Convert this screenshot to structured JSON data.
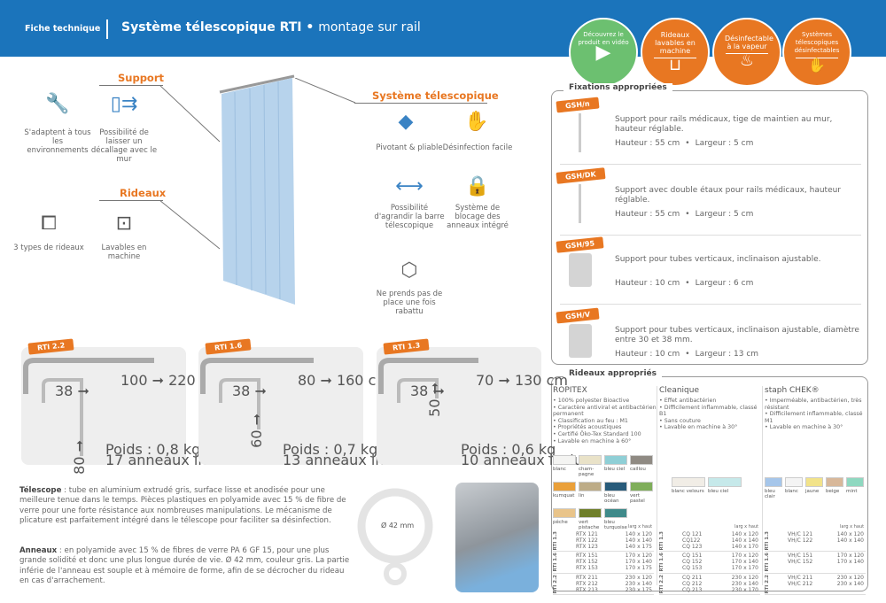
{
  "header": {
    "doc_type": "Fiche technique",
    "title": "Système télescopique RTI",
    "title_sep": "•",
    "subtitle": "montage sur rail",
    "color": "#1b74bb"
  },
  "badges": [
    {
      "label": "Découvrez le produit en vidéo",
      "icon": "video-camera-icon",
      "color": "#6cc070"
    },
    {
      "label": "Rideaux lavables en machine",
      "icon": "wash-basin-icon",
      "color": "#e87722"
    },
    {
      "label": "Désinfectable à la vapeur",
      "icon": "steam-icon",
      "color": "#e87722"
    },
    {
      "label": "Systèmes télescopiques désinfectables",
      "icon": "wipe-hand-icon",
      "color": "#e87722"
    }
  ],
  "support": {
    "title": "Support",
    "items": [
      {
        "label": "S'adaptent à tous les environnements",
        "icon": "tools-icon"
      },
      {
        "label": "Possibilité de laisser un décallage avec le mur",
        "icon": "wall-offset-icon"
      }
    ]
  },
  "rideaux": {
    "title": "Rideaux",
    "items": [
      {
        "label": "3 types de rideaux",
        "icon": "curtain-icon"
      },
      {
        "label": "Lavables en machine",
        "icon": "washing-machine-icon"
      }
    ]
  },
  "telescopique": {
    "title": "Système télescopique",
    "items": [
      {
        "label": "Pivotant & pliable",
        "icon": "rotate-icon"
      },
      {
        "label": "Désinfection facile",
        "icon": "wipe-icon"
      },
      {
        "label": "Possibilité d'agrandir la barre télescopique",
        "icon": "extend-icon"
      },
      {
        "label": "Système de blocage des anneaux intégré",
        "icon": "lock-icon"
      },
      {
        "label": "Ne prends pas de place une fois rabattu",
        "icon": "cube-icon"
      }
    ]
  },
  "models": [
    {
      "name": "RTI 2.2",
      "range": "100 ➞ 220 cm",
      "offset": "38 ➞",
      "drop": "80 ➞",
      "weight": "Poids : 0,8 kg",
      "rings": "17 anneaux inclus"
    },
    {
      "name": "RTI 1.6",
      "range": "80 ➞ 160 cm",
      "offset": "38 ➞",
      "drop": "60 ➞",
      "weight": "Poids : 0,7 kg",
      "rings": "13 anneaux inclus"
    },
    {
      "name": "RTI 1.3",
      "range": "70 ➞ 130 cm",
      "offset": "38 ➞",
      "drop": "50 ➞",
      "weight": "Poids : 0,6 kg",
      "rings": "10 anneaux inclus"
    }
  ],
  "text": {
    "telescope_label": "Télescope",
    "telescope": " : tube en aluminium extrudé gris, surface lisse et anodisée pour une meilleure tenue dans le temps. Pièces plastiques en polyamide avec 15 % de fibre de verre pour une forte résistance aux nombreuses manipulations. Le mécanisme de plicature est parfaitement intégré dans le télescope pour faciliter sa désinfection.",
    "anneaux_label": "Anneaux",
    "anneaux": " : en polyamide avec 15 % de fibres de verre PA 6 GF 15, pour une plus grande solidité et donc une plus longue durée de vie. Ø 42 mm, couleur gris. La partie inférie de l'anneau est souple et à mémoire de forme, afin de se décrocher du rideau en cas d'arrachement.",
    "ring_dim": "Ø 42 mm"
  },
  "fixations": {
    "title": "Fixations appropriées",
    "items": [
      {
        "code": "GSH/n",
        "desc": "Support pour rails médicaux, tige de maintien au mur, hauteur réglable.",
        "height": "Hauteur : 55 cm",
        "width": "Largeur : 5 cm"
      },
      {
        "code": "GSH/DK",
        "desc": "Support avec double étaux pour rails médicaux, hauteur réglable.",
        "height": "Hauteur : 55 cm",
        "width": "Largeur : 5 cm"
      },
      {
        "code": "GSH/95",
        "desc": "Support pour tubes verticaux, inclinaison ajustable.",
        "height": "Hauteur : 10 cm",
        "width": "Largeur : 6 cm"
      },
      {
        "code": "GSH/V",
        "desc": "Support pour tubes verticaux, inclinaison ajustable, diamètre entre 30 et 38 mm.",
        "height": "Hauteur : 10 cm",
        "width": "Largeur : 13 cm"
      }
    ]
  },
  "curtains": {
    "title": "Rideaux appropriés",
    "dim_header": "larg x haut",
    "brands": [
      {
        "name": "ROPITEX",
        "features": [
          "• 100% polyester Bioactive",
          "• Caractère antiviral et antibactérien permanent",
          "• Classification au feu : M1",
          "• Propriétés acoustiques",
          "• Certifié Öko-Tex Standard 100",
          "• Lavable en machine à 60°"
        ],
        "swatches": [
          {
            "n": "blanc",
            "c": "#f4f4f2"
          },
          {
            "n": "cham-pagne",
            "c": "#e9e2c8"
          },
          {
            "n": "bleu ciel",
            "c": "#8fcfd6"
          },
          {
            "n": "caillou",
            "c": "#8f8a83"
          },
          {
            "n": "kumquat",
            "c": "#eaa03a"
          },
          {
            "n": "lin",
            "c": "#bdac87"
          },
          {
            "n": "bleu océan",
            "c": "#285b7a"
          },
          {
            "n": "vert pastel",
            "c": "#7fae5a"
          },
          {
            "n": "pêche",
            "c": "#e9c48a"
          },
          {
            "n": "vert pistache",
            "c": "#6f7f2a"
          },
          {
            "n": "bleu turquoise",
            "c": "#3f8a8a"
          }
        ],
        "groups": [
          {
            "m": "RTI 1.3",
            "rows": [
              [
                "RTX 121",
                "140 x 120"
              ],
              [
                "RTX 122",
                "140 x 140"
              ],
              [
                "RTX 123",
                "140 x 175"
              ]
            ]
          },
          {
            "m": "RTI 1.6",
            "rows": [
              [
                "RTX 151",
                "170 x 120"
              ],
              [
                "RTX 152",
                "170 x 140"
              ],
              [
                "RTX 153",
                "170 x 175"
              ]
            ]
          },
          {
            "m": "RTI 2.2",
            "rows": [
              [
                "RTX 211",
                "230 x 120"
              ],
              [
                "RTX 212",
                "230 x 140"
              ],
              [
                "RTX 213",
                "230 x 175"
              ]
            ]
          }
        ]
      },
      {
        "name": "Cleanique",
        "features": [
          "• Effet antibactérien",
          "• Difficilement inflammable, classé B1",
          "• Sans couture",
          "• Lavable en machine à 30°"
        ],
        "swatches": [
          {
            "n": "blanc velours",
            "c": "#f1ede6"
          },
          {
            "n": "bleu ciel",
            "c": "#c6e9ea"
          }
        ],
        "groups": [
          {
            "m": "RTI 1.3",
            "rows": [
              [
                "CQ 121",
                "140 x 120"
              ],
              [
                "CQ122",
                "140 x 140"
              ],
              [
                "CQ 123",
                "140 x 170"
              ]
            ]
          },
          {
            "m": "RTI 1.6",
            "rows": [
              [
                "CQ 151",
                "170 x 120"
              ],
              [
                "CQ 152",
                "170 x 140"
              ],
              [
                "CQ 153",
                "170 x 170"
              ]
            ]
          },
          {
            "m": "RTI 2.2",
            "rows": [
              [
                "CQ 211",
                "230 x 120"
              ],
              [
                "CQ 212",
                "230 x 140"
              ],
              [
                "CQ 213",
                "230 x 170"
              ]
            ]
          }
        ]
      },
      {
        "name": "staph CHEK®",
        "features": [
          "• Imperméable, antibactérien, très résistant",
          "• Difficilement inflammable, classé M1",
          "• Lavable en machine à 30°"
        ],
        "swatches": [
          {
            "n": "bleu clair",
            "c": "#a6c6ea"
          },
          {
            "n": "blanc",
            "c": "#f4f4f4"
          },
          {
            "n": "jaune",
            "c": "#f2e38a"
          },
          {
            "n": "beige",
            "c": "#d8b89a"
          },
          {
            "n": "mint",
            "c": "#8fd8c0"
          }
        ],
        "groups": [
          {
            "m": "RTI 1.3",
            "rows": [
              [
                "VH/C 121",
                "140 x 120"
              ],
              [
                "VH/C 122",
                "140 x 140"
              ]
            ]
          },
          {
            "m": "RTI 1.6",
            "rows": [
              [
                "VH/C 151",
                "170 x 120"
              ],
              [
                "VH/C 152",
                "170 x 140"
              ]
            ]
          },
          {
            "m": "RTI 2.2",
            "rows": [
              [
                "VH/C 211",
                "230 x 120"
              ],
              [
                "VH/C 212",
                "230 x 140"
              ]
            ]
          }
        ]
      }
    ]
  }
}
